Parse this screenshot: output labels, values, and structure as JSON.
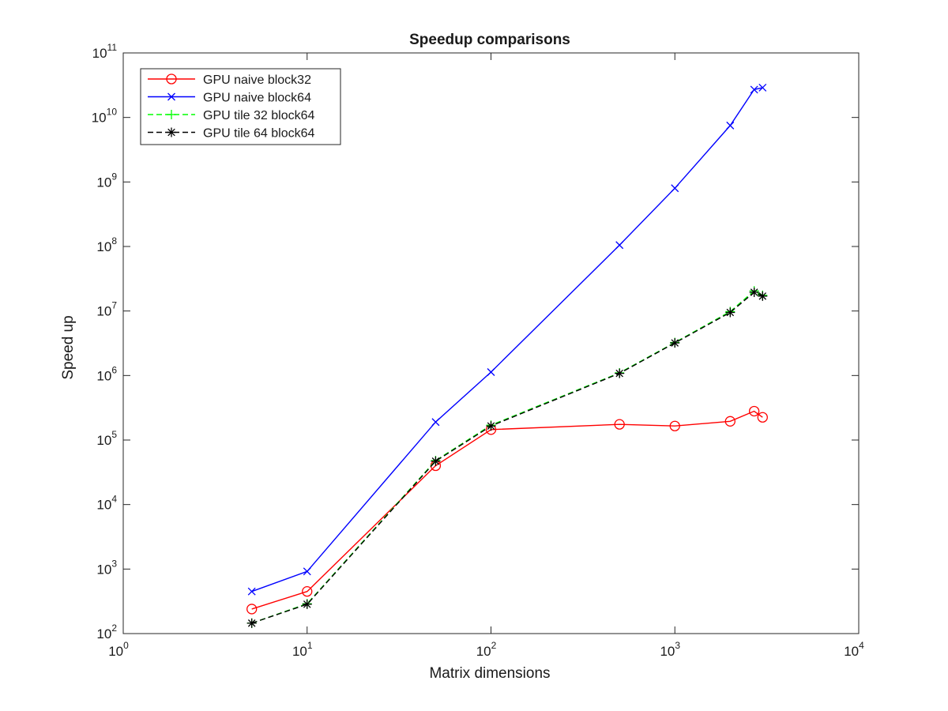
{
  "chart_data": {
    "type": "line",
    "title": "Speedup comparisons",
    "xlabel": "Matrix dimensions",
    "ylabel": "Speed up",
    "xscale": "log",
    "yscale": "log",
    "xlim": [
      1,
      10000
    ],
    "ylim": [
      100,
      100000000000
    ],
    "grid": false,
    "legend_position": "top-left",
    "x_ticks": [
      {
        "base": "10",
        "exp": "0",
        "value": 1
      },
      {
        "base": "10",
        "exp": "1",
        "value": 10
      },
      {
        "base": "10",
        "exp": "2",
        "value": 100
      },
      {
        "base": "10",
        "exp": "3",
        "value": 1000
      },
      {
        "base": "10",
        "exp": "4",
        "value": 10000
      }
    ],
    "y_ticks": [
      {
        "base": "10",
        "exp": "2",
        "value": 100
      },
      {
        "base": "10",
        "exp": "3",
        "value": 1000
      },
      {
        "base": "10",
        "exp": "4",
        "value": 10000
      },
      {
        "base": "10",
        "exp": "5",
        "value": 100000
      },
      {
        "base": "10",
        "exp": "6",
        "value": 1000000
      },
      {
        "base": "10",
        "exp": "7",
        "value": 10000000
      },
      {
        "base": "10",
        "exp": "8",
        "value": 100000000
      },
      {
        "base": "10",
        "exp": "9",
        "value": 1000000000
      },
      {
        "base": "10",
        "exp": "10",
        "value": 10000000000
      },
      {
        "base": "10",
        "exp": "11",
        "value": 100000000000
      }
    ],
    "series": [
      {
        "name": "GPU naive block32",
        "color": "#ff0000",
        "line_style": "solid",
        "marker": "circle",
        "x": [
          5,
          10,
          50,
          100,
          500,
          1000,
          2000,
          2700,
          3000
        ],
        "y": [
          240,
          450,
          40000,
          145000,
          175000,
          165000,
          195000,
          280000,
          225000
        ]
      },
      {
        "name": "GPU naive block64",
        "color": "#0000ff",
        "line_style": "solid",
        "marker": "x",
        "x": [
          5,
          10,
          50,
          100,
          500,
          1000,
          2000,
          2700,
          3000
        ],
        "y": [
          450,
          920,
          190000,
          1130000,
          105000000,
          800000000,
          7500000000,
          27000000000,
          29000000000
        ]
      },
      {
        "name": "GPU tile 32 block64",
        "color": "#00ff00",
        "line_style": "dashed",
        "marker": "plus",
        "x": [
          5,
          10,
          50,
          100,
          500,
          1000,
          2000,
          2700,
          3000
        ],
        "y": [
          145,
          290,
          48000,
          170000,
          1100000,
          3250000,
          9800000,
          20500000,
          17500000
        ]
      },
      {
        "name": "GPU tile 64 block64",
        "color": "#000000",
        "line_style": "dashed",
        "marker": "asterisk",
        "x": [
          5,
          10,
          50,
          100,
          500,
          1000,
          2000,
          2700,
          3000
        ],
        "y": [
          145,
          285,
          47000,
          165000,
          1080000,
          3200000,
          9500000,
          19500000,
          17000000
        ]
      }
    ]
  }
}
